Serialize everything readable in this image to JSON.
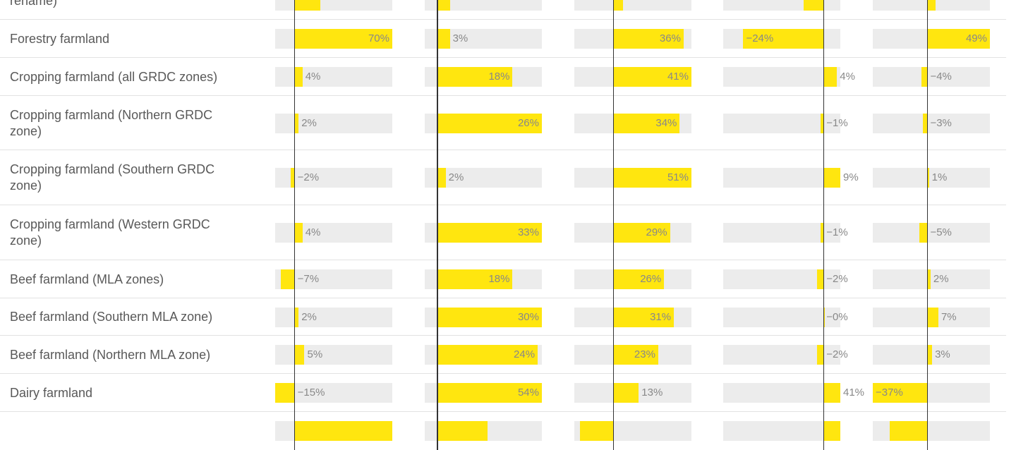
{
  "colors": {
    "bar": "#ffe60f",
    "track": "#ececec",
    "axis": "#333333",
    "label": "#595959",
    "value": "#888888",
    "divider": "#e2e2e2"
  },
  "chart_data": {
    "type": "bar",
    "title": "",
    "value_format": "percent",
    "series": [
      {
        "name": "",
        "xlim": [
          -10,
          50
        ]
      },
      {
        "name": "",
        "xlim": [
          -3,
          25
        ]
      },
      {
        "name": "",
        "xlim": [
          -20,
          40
        ]
      },
      {
        "name": "",
        "xlim": [
          -30,
          5
        ]
      },
      {
        "name": "",
        "xlim": [
          -35,
          40
        ]
      }
    ],
    "rows": [
      {
        "label": "rename)",
        "values": [
          13,
          3,
          5,
          -6,
          5
        ]
      },
      {
        "label": "Forestry farmland",
        "values": [
          70,
          3,
          36,
          -24,
          49
        ]
      },
      {
        "label": "Cropping farmland (all GRDC zones)",
        "values": [
          4,
          18,
          41,
          4,
          -4
        ]
      },
      {
        "label": "Cropping farmland (Northern GRDC zone)",
        "values": [
          2,
          26,
          34,
          -1,
          -3
        ]
      },
      {
        "label": "Cropping farmland (Southern GRDC zone)",
        "values": [
          -2,
          2,
          51,
          9,
          1
        ]
      },
      {
        "label": "Cropping farmland (Western GRDC zone)",
        "values": [
          4,
          33,
          29,
          -1,
          -5
        ]
      },
      {
        "label": "Beef farmland (MLA zones)",
        "values": [
          -7,
          18,
          26,
          -2,
          2
        ]
      },
      {
        "label": "Beef farmland (Southern MLA zone)",
        "values": [
          2,
          30,
          31,
          0,
          7
        ]
      },
      {
        "label": "Beef farmland (Northern MLA zone)",
        "values": [
          5,
          24,
          23,
          -2,
          3
        ]
      },
      {
        "label": "Dairy farmland",
        "values": [
          -15,
          54,
          13,
          41,
          -37
        ]
      },
      {
        "label": "",
        "values": [
          55,
          12,
          -17,
          16,
          -24
        ]
      }
    ],
    "display_labels": [
      [
        "",
        "",
        "",
        "",
        ""
      ],
      [
        "70%",
        "3%",
        "36%",
        "−24%",
        "49%"
      ],
      [
        "4%",
        "18%",
        "41%",
        "4%",
        "−4%"
      ],
      [
        "2%",
        "26%",
        "34%",
        "−1%",
        "−3%"
      ],
      [
        "−2%",
        "2%",
        "51%",
        "9%",
        "1%"
      ],
      [
        "4%",
        "33%",
        "29%",
        "−1%",
        "−5%"
      ],
      [
        "−7%",
        "18%",
        "26%",
        "−2%",
        "2%"
      ],
      [
        "2%",
        "30%",
        "31%",
        "−0%",
        "7%"
      ],
      [
        "5%",
        "24%",
        "23%",
        "−2%",
        "3%"
      ],
      [
        "−15%",
        "54%",
        "13%",
        "41%",
        "−37%"
      ],
      [
        "",
        "",
        "",
        "",
        ""
      ]
    ]
  }
}
